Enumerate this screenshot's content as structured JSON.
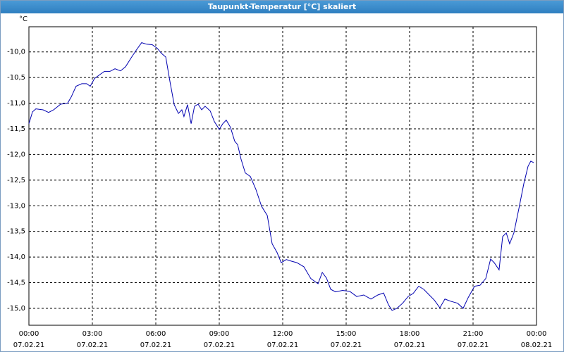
{
  "window_title": "Taupunkt-Temperatur [°C] skaliert",
  "chart_data": {
    "type": "line",
    "y_label": "°C",
    "grid": true,
    "xlim": [
      0,
      24
    ],
    "xticks": [
      {
        "value": 0,
        "label": "00:00"
      },
      {
        "value": 3,
        "label": "03:00"
      },
      {
        "value": 6,
        "label": "06:00"
      },
      {
        "value": 9,
        "label": "09:00"
      },
      {
        "value": 12,
        "label": "12:00"
      },
      {
        "value": 15,
        "label": "15:00"
      },
      {
        "value": 18,
        "label": "18:00"
      },
      {
        "value": 21,
        "label": "21:00"
      },
      {
        "value": 24,
        "label": "00:00"
      }
    ],
    "xtick_dates": [
      "07.02.21",
      "07.02.21",
      "07.02.21",
      "07.02.21",
      "07.02.21",
      "07.02.21",
      "07.02.21",
      "07.02.21",
      "08.02.21"
    ],
    "ylim": [
      -15.33,
      -9.51
    ],
    "yticks": [
      {
        "value": -10,
        "label": "-10,0"
      },
      {
        "value": -10.5,
        "label": "-10,5"
      },
      {
        "value": -11,
        "label": "-11,0"
      },
      {
        "value": -11.5,
        "label": "-11,5"
      },
      {
        "value": -12,
        "label": "-12,0"
      },
      {
        "value": -12.5,
        "label": "-12,5"
      },
      {
        "value": -13,
        "label": "-13,0"
      },
      {
        "value": -13.5,
        "label": "-13,5"
      },
      {
        "value": -14,
        "label": "-14,0"
      },
      {
        "value": -14.5,
        "label": "-14,5"
      },
      {
        "value": -15,
        "label": "-15,0"
      }
    ],
    "series": [
      {
        "color": "#0000b0",
        "x": [
          0,
          0.17,
          0.33,
          0.67,
          0.93,
          1.17,
          1.5,
          1.83,
          2.0,
          2.23,
          2.5,
          2.73,
          2.9,
          3.1,
          3.33,
          3.57,
          3.83,
          4.07,
          4.33,
          4.57,
          4.83,
          5.07,
          5.33,
          5.57,
          5.83,
          6.07,
          6.27,
          6.47,
          6.67,
          6.87,
          7.07,
          7.23,
          7.33,
          7.5,
          7.67,
          7.83,
          8.0,
          8.17,
          8.33,
          8.57,
          8.77,
          9.0,
          9.17,
          9.33,
          9.53,
          9.73,
          9.87,
          10.03,
          10.23,
          10.47,
          10.73,
          11.0,
          11.27,
          11.5,
          11.73,
          11.93,
          12.17,
          12.4,
          12.67,
          13.0,
          13.33,
          13.67,
          13.87,
          14.07,
          14.27,
          14.5,
          14.83,
          15.17,
          15.5,
          15.83,
          16.17,
          16.5,
          16.77,
          17.0,
          17.17,
          17.4,
          17.67,
          17.93,
          18.17,
          18.43,
          18.67,
          18.93,
          19.17,
          19.43,
          19.67,
          19.93,
          20.27,
          20.53,
          20.77,
          21.07,
          21.33,
          21.6,
          21.83,
          22.0,
          22.23,
          22.4,
          22.57,
          22.73,
          22.93,
          23.17,
          23.4,
          23.6,
          23.73,
          23.87
        ],
        "values": [
          -11.4,
          -11.17,
          -11.11,
          -11.13,
          -11.18,
          -11.13,
          -11.02,
          -11.0,
          -10.88,
          -10.67,
          -10.62,
          -10.62,
          -10.67,
          -10.52,
          -10.45,
          -10.38,
          -10.38,
          -10.33,
          -10.37,
          -10.29,
          -10.12,
          -9.97,
          -9.82,
          -9.85,
          -9.86,
          -9.93,
          -10.03,
          -10.1,
          -10.58,
          -11.03,
          -11.2,
          -11.13,
          -11.26,
          -11.03,
          -11.4,
          -11.06,
          -11.02,
          -11.13,
          -11.06,
          -11.15,
          -11.36,
          -11.51,
          -11.4,
          -11.33,
          -11.47,
          -11.74,
          -11.81,
          -12.09,
          -12.36,
          -12.43,
          -12.68,
          -13.01,
          -13.19,
          -13.74,
          -13.91,
          -14.11,
          -14.05,
          -14.08,
          -14.11,
          -14.19,
          -14.42,
          -14.52,
          -14.3,
          -14.41,
          -14.63,
          -14.68,
          -14.65,
          -14.67,
          -14.77,
          -14.74,
          -14.82,
          -14.74,
          -14.7,
          -14.93,
          -15.04,
          -15.0,
          -14.9,
          -14.77,
          -14.71,
          -14.57,
          -14.63,
          -14.74,
          -14.84,
          -14.99,
          -14.82,
          -14.86,
          -14.9,
          -15.0,
          -14.79,
          -14.57,
          -14.55,
          -14.42,
          -14.04,
          -14.11,
          -14.25,
          -13.6,
          -13.53,
          -13.74,
          -13.53,
          -13.05,
          -12.57,
          -12.23,
          -12.13,
          -12.16
        ]
      }
    ]
  }
}
